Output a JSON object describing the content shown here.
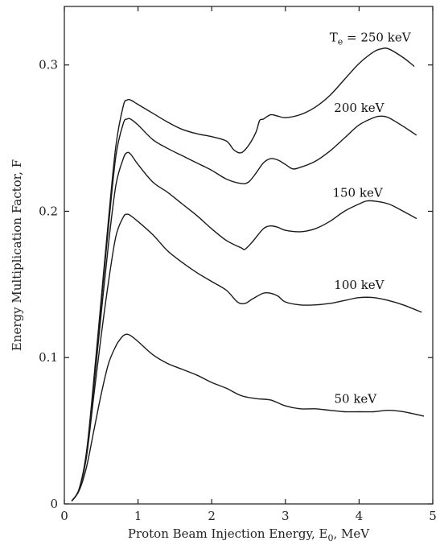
{
  "chart_data": {
    "type": "line",
    "title": "",
    "xlabel": {
      "main": "Proton Beam Injection Energy, E",
      "sub": "0",
      "suffix": ", MeV"
    },
    "ylabel": "Energy Multiplication Factor, F",
    "xlim": [
      0,
      5
    ],
    "ylim": [
      0,
      0.34
    ],
    "xticks": [
      0,
      1,
      2,
      3,
      4,
      5
    ],
    "xtick_labels": [
      "0",
      "1",
      "2",
      "3",
      "4",
      "5"
    ],
    "yticks": [
      0,
      0.1,
      0.2,
      0.3
    ],
    "ytick_labels": [
      "0",
      "0.1",
      "0.2",
      "0.3"
    ],
    "grid": false,
    "legend": "none",
    "series": [
      {
        "label": {
          "main": "T",
          "sub": "e",
          "suffix": " = 250 keV"
        },
        "label_pos": [
          4.15,
          0.316
        ],
        "x": [
          0.1,
          0.2,
          0.3,
          0.4,
          0.5,
          0.6,
          0.7,
          0.8,
          0.85,
          0.9,
          1.0,
          1.2,
          1.4,
          1.6,
          1.8,
          2.0,
          2.2,
          2.3,
          2.4,
          2.5,
          2.6,
          2.65,
          2.7,
          2.8,
          2.9,
          3.0,
          3.2,
          3.4,
          3.6,
          3.8,
          4.0,
          4.2,
          4.3,
          4.4,
          4.6,
          4.75
        ],
        "y": [
          0.002,
          0.01,
          0.035,
          0.085,
          0.14,
          0.195,
          0.245,
          0.272,
          0.276,
          0.276,
          0.273,
          0.267,
          0.261,
          0.256,
          0.253,
          0.251,
          0.248,
          0.242,
          0.24,
          0.245,
          0.254,
          0.262,
          0.263,
          0.266,
          0.265,
          0.264,
          0.266,
          0.271,
          0.279,
          0.29,
          0.301,
          0.309,
          0.311,
          0.311,
          0.305,
          0.299
        ]
      },
      {
        "label": {
          "main": "200 keV",
          "sub": "",
          "suffix": ""
        },
        "label_pos": [
          4.0,
          0.268
        ],
        "x": [
          0.1,
          0.2,
          0.3,
          0.4,
          0.5,
          0.6,
          0.7,
          0.8,
          0.85,
          0.9,
          1.0,
          1.2,
          1.4,
          1.6,
          1.8,
          2.0,
          2.2,
          2.4,
          2.5,
          2.6,
          2.7,
          2.8,
          2.9,
          3.0,
          3.1,
          3.2,
          3.4,
          3.6,
          3.8,
          4.0,
          4.2,
          4.3,
          4.4,
          4.6,
          4.78
        ],
        "y": [
          0.002,
          0.01,
          0.035,
          0.083,
          0.137,
          0.19,
          0.238,
          0.26,
          0.263,
          0.263,
          0.259,
          0.249,
          0.243,
          0.238,
          0.233,
          0.228,
          0.222,
          0.219,
          0.22,
          0.226,
          0.233,
          0.236,
          0.235,
          0.232,
          0.229,
          0.23,
          0.234,
          0.241,
          0.25,
          0.259,
          0.264,
          0.265,
          0.264,
          0.258,
          0.252
        ]
      },
      {
        "label": {
          "main": "150 keV",
          "sub": "",
          "suffix": ""
        },
        "label_pos": [
          3.98,
          0.21
        ],
        "x": [
          0.1,
          0.2,
          0.3,
          0.4,
          0.5,
          0.6,
          0.7,
          0.8,
          0.85,
          0.9,
          1.0,
          1.2,
          1.4,
          1.6,
          1.8,
          2.0,
          2.2,
          2.4,
          2.45,
          2.55,
          2.7,
          2.8,
          2.9,
          3.0,
          3.2,
          3.4,
          3.6,
          3.8,
          4.0,
          4.1,
          4.2,
          4.4,
          4.6,
          4.78
        ],
        "y": [
          0.002,
          0.01,
          0.034,
          0.08,
          0.13,
          0.178,
          0.218,
          0.236,
          0.24,
          0.239,
          0.232,
          0.22,
          0.213,
          0.205,
          0.197,
          0.188,
          0.18,
          0.175,
          0.174,
          0.179,
          0.188,
          0.19,
          0.189,
          0.187,
          0.186,
          0.188,
          0.193,
          0.2,
          0.205,
          0.207,
          0.207,
          0.205,
          0.2,
          0.195
        ]
      },
      {
        "label": {
          "main": "100 keV",
          "sub": "",
          "suffix": ""
        },
        "label_pos": [
          4.0,
          0.147
        ],
        "x": [
          0.1,
          0.2,
          0.3,
          0.4,
          0.5,
          0.6,
          0.7,
          0.8,
          0.85,
          0.9,
          1.0,
          1.2,
          1.4,
          1.6,
          1.8,
          2.0,
          2.2,
          2.35,
          2.45,
          2.55,
          2.7,
          2.8,
          2.9,
          3.0,
          3.2,
          3.4,
          3.6,
          3.8,
          4.0,
          4.2,
          4.4,
          4.6,
          4.85
        ],
        "y": [
          0.002,
          0.01,
          0.032,
          0.074,
          0.115,
          0.152,
          0.183,
          0.196,
          0.198,
          0.197,
          0.193,
          0.184,
          0.173,
          0.165,
          0.158,
          0.152,
          0.146,
          0.138,
          0.137,
          0.14,
          0.144,
          0.144,
          0.142,
          0.138,
          0.136,
          0.136,
          0.137,
          0.139,
          0.141,
          0.141,
          0.139,
          0.136,
          0.131
        ]
      },
      {
        "label": {
          "main": "50 keV",
          "sub": "",
          "suffix": ""
        },
        "label_pos": [
          3.95,
          0.069
        ],
        "x": [
          0.1,
          0.2,
          0.3,
          0.4,
          0.5,
          0.6,
          0.7,
          0.75,
          0.8,
          0.85,
          0.9,
          1.0,
          1.2,
          1.4,
          1.6,
          1.8,
          2.0,
          2.2,
          2.4,
          2.6,
          2.8,
          3.0,
          3.2,
          3.4,
          3.6,
          3.8,
          4.0,
          4.2,
          4.4,
          4.6,
          4.88
        ],
        "y": [
          0.002,
          0.009,
          0.025,
          0.05,
          0.075,
          0.096,
          0.108,
          0.112,
          0.115,
          0.116,
          0.115,
          0.111,
          0.102,
          0.096,
          0.092,
          0.088,
          0.083,
          0.079,
          0.074,
          0.072,
          0.071,
          0.067,
          0.065,
          0.065,
          0.064,
          0.063,
          0.063,
          0.063,
          0.064,
          0.063,
          0.06
        ]
      }
    ]
  }
}
